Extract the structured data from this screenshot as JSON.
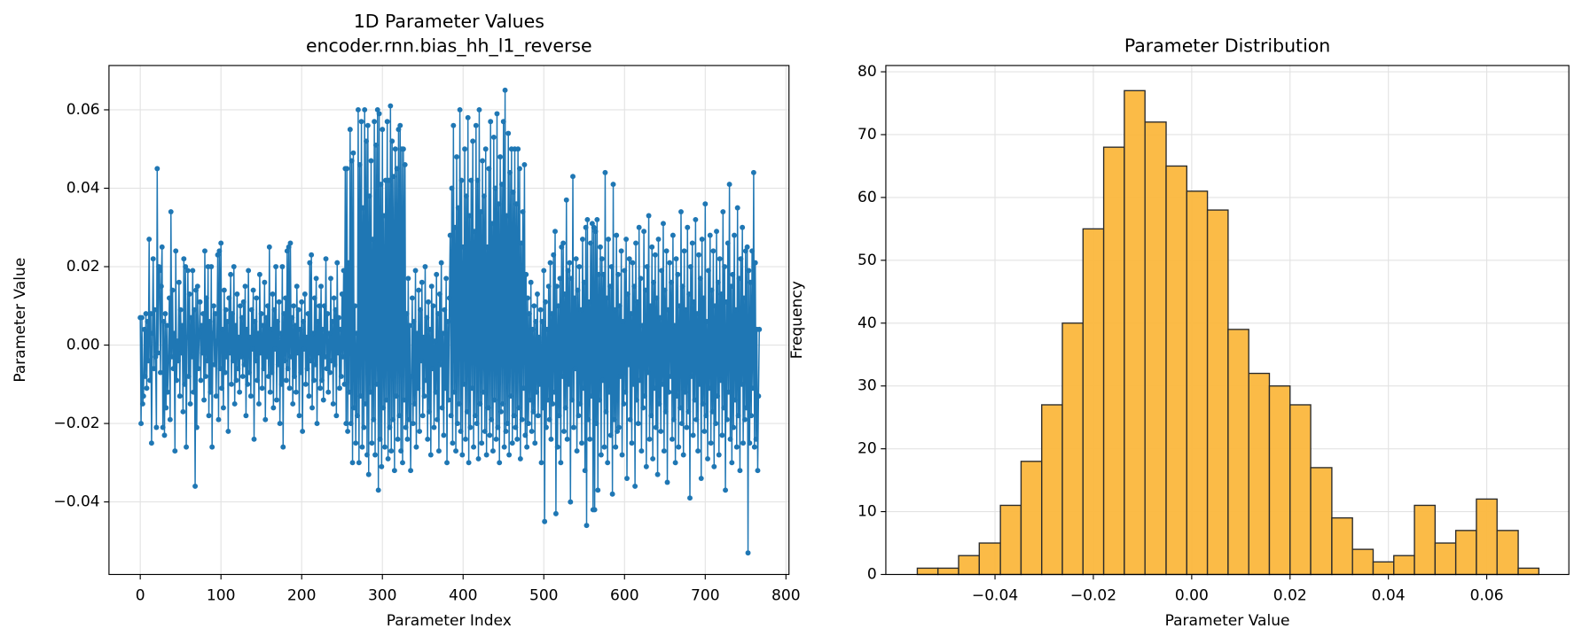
{
  "chart_data": [
    {
      "type": "line",
      "title": "1D Parameter Values",
      "subtitle": "encoder.rnn.bias_hh_l1_reverse",
      "xlabel": "Parameter Index",
      "ylabel": "Parameter Value",
      "color": "#1f77b4",
      "markers": true,
      "grid": true,
      "xlim": [
        -38.75,
        803.75
      ],
      "xticks": [
        0,
        100,
        200,
        300,
        400,
        500,
        600,
        700,
        800
      ],
      "ylim": [
        -0.0585,
        0.0713
      ],
      "yticks": [
        {
          "value": -0.04,
          "label": "−0.04"
        },
        {
          "value": -0.02,
          "label": "−0.02"
        },
        {
          "value": 0,
          "label": "0.00"
        },
        0.02,
        0.04,
        0.06
      ],
      "values": [
        0.007,
        -0.02,
        0.007,
        -0.015,
        -0.013,
        0.004,
        -0.008,
        0.008,
        -0.011,
        0.006,
        -0.004,
        0.027,
        -0.009,
        0.008,
        -0.025,
        0.003,
        0.022,
        -0.006,
        0.009,
        -0.003,
        -0.021,
        0.045,
        -0.002,
        0.02,
        0.019,
        -0.007,
        0.015,
        0.025,
        -0.021,
        0.006,
        -0.023,
        0.008,
        -0.016,
        0.005,
        -0.012,
        -0.004,
        0.012,
        -0.019,
        0.034,
        -0.003,
        0.014,
        -0.006,
        0.003,
        -0.027,
        0.024,
        -0.009,
        0.001,
        -0.004,
        0.016,
        -0.013,
        0.009,
        -0.002,
        0.005,
        -0.017,
        0.022,
        -0.01,
        0.02,
        -0.026,
        0.002,
        0.019,
        -0.008,
        0.013,
        -0.015,
        0.007,
        -0.003,
        0.019,
        -0.012,
        0.009,
        -0.036,
        0.014,
        -0.021,
        0.015,
        -0.006,
        0.003,
        0.011,
        -0.009,
        0.005,
        -0.002,
        0.008,
        -0.014,
        0.024,
        -0.008,
        0.012,
        -0.004,
        0.02,
        -0.018,
        0.006,
        -0.012,
        0.02,
        -0.026,
        0.003,
        0.01,
        -0.005,
        0.008,
        -0.013,
        0.001,
        0.023,
        -0.019,
        0.024,
        -0.006,
        0.026,
        -0.011,
        0.004,
        -0.016,
        0.014,
        -0.007,
        0.009,
        -0.003,
        0.006,
        -0.022,
        0.012,
        -0.002,
        0.018,
        -0.01,
        0.008,
        -0.004,
        0.02,
        -0.015,
        0.005,
        -0.009,
        0.013,
        -0.006,
        0.002,
        -0.012,
        0.01,
        -0.003,
        0.007,
        -0.008,
        0.011,
        -0.005,
        0.015,
        -0.018,
        0.004,
        -0.01,
        0.019,
        -0.007,
        0.002,
        -0.013,
        0.009,
        -0.001,
        0.014,
        -0.024,
        0.006,
        -0.004,
        0.012,
        -0.009,
        0.003,
        -0.015,
        0.018,
        -0.002,
        0.008,
        -0.011,
        0.005,
        -0.006,
        0.016,
        -0.019,
        0.007,
        -0.003,
        0.01,
        -0.008,
        0.025,
        -0.012,
        0.004,
        -0.007,
        0.013,
        -0.016,
        0.009,
        -0.001,
        0.02,
        -0.014,
        0.006,
        -0.005,
        0.011,
        -0.02,
        0.003,
        -0.01,
        0.02,
        -0.026,
        0.008,
        -0.004,
        0.012,
        -0.009,
        0.024,
        -0.006,
        0.025,
        -0.011,
        0.026,
        -0.003,
        0.007,
        -0.015,
        0.01,
        -0.008,
        0.005,
        -0.012,
        0.015,
        -0.002,
        0.009,
        -0.018,
        0.004,
        -0.007,
        0.011,
        -0.022,
        0.006,
        -0.001,
        0.013,
        -0.01,
        0.002,
        -0.006,
        0.008,
        -0.013,
        0.021,
        -0.004,
        0.023,
        -0.016,
        0.003,
        -0.009,
        0.012,
        -0.005,
        0.017,
        -0.02,
        0.006,
        -0.002,
        0.01,
        -0.011,
        0.015,
        -0.009,
        0.004,
        -0.014,
        0.01,
        -0.003,
        0.022,
        -0.006,
        0.008,
        -0.012,
        0.003,
        -0.007,
        0.017,
        -0.004,
        0.006,
        -0.015,
        0.012,
        -0.005,
        0.009,
        -0.018,
        0.021,
        -0.002,
        0.007,
        -0.011,
        0.004,
        -0.008,
        0.013,
        -0.003,
        0.019,
        -0.01,
        0.045,
        -0.02,
        0.045,
        -0.022,
        0.021,
        -0.012,
        0.055,
        -0.02,
        0.047,
        -0.03,
        0.049,
        -0.016,
        0.01,
        -0.025,
        0.003,
        -0.018,
        0.06,
        -0.03,
        0.046,
        -0.013,
        0.057,
        -0.026,
        0.035,
        -0.021,
        0.06,
        -0.015,
        0.052,
        -0.028,
        0.056,
        -0.033,
        0.038,
        -0.012,
        0.047,
        -0.025,
        0.027,
        -0.019,
        0.057,
        -0.028,
        0.051,
        -0.01,
        0.06,
        -0.037,
        0.059,
        -0.024,
        0.041,
        -0.031,
        0.055,
        -0.016,
        0.033,
        -0.026,
        0.042,
        -0.014,
        0.057,
        -0.029,
        0.042,
        -0.021,
        0.061,
        -0.027,
        0.052,
        -0.019,
        0.043,
        -0.032,
        0.05,
        -0.013,
        0.045,
        -0.024,
        0.055,
        -0.018,
        0.056,
        -0.027,
        0.05,
        -0.03,
        0.05,
        -0.014,
        0.046,
        -0.021,
        0.008,
        -0.024,
        0.017,
        -0.019,
        0.005,
        -0.032,
        -0.008,
        0.012,
        -0.02,
        0.006,
        -0.015,
        0.019,
        -0.026,
        0.003,
        -0.011,
        0.014,
        -0.022,
        0.009,
        -0.004,
        0.016,
        -0.018,
        0.002,
        -0.013,
        0.02,
        -0.009,
        0.007,
        -0.024,
        0.011,
        -0.017,
        0.004,
        -0.028,
        0.015,
        -0.006,
        0.01,
        -0.021,
        0.001,
        -0.012,
        0.018,
        -0.019,
        0.008,
        -0.027,
        0.013,
        -0.005,
        0.021,
        -0.016,
        0.003,
        -0.023,
        0.009,
        -0.011,
        0.017,
        -0.03,
        0.006,
        -0.014,
        0.012,
        0.028,
        -0.018,
        0.04,
        -0.025,
        0.056,
        -0.012,
        0.03,
        -0.027,
        0.048,
        -0.02,
        0.035,
        -0.015,
        0.06,
        -0.022,
        0.042,
        -0.028,
        0.025,
        -0.01,
        0.05,
        -0.024,
        0.038,
        -0.017,
        0.058,
        -0.03,
        0.033,
        -0.021,
        0.042,
        -0.011,
        0.052,
        -0.026,
        0.029,
        -0.018,
        0.056,
        -0.02,
        0.042,
        -0.029,
        0.06,
        -0.015,
        0.034,
        -0.025,
        0.047,
        -0.012,
        0.038,
        -0.022,
        0.05,
        -0.028,
        0.025,
        -0.016,
        0.045,
        -0.023,
        0.057,
        -0.019,
        0.031,
        -0.027,
        0.053,
        -0.014,
        0.04,
        -0.024,
        0.059,
        -0.021,
        0.036,
        -0.03,
        0.048,
        -0.017,
        0.041,
        -0.015,
        0.057,
        -0.026,
        0.065,
        -0.022,
        0.033,
        -0.02,
        0.054,
        -0.028,
        0.044,
        -0.013,
        0.05,
        -0.025,
        0.039,
        -0.018,
        0.05,
        -0.021,
        0.036,
        -0.024,
        0.05,
        -0.016,
        0.045,
        -0.029,
        0.026,
        -0.019,
        0.034,
        -0.011,
        0.046,
        -0.023,
        0.018,
        -0.026,
        0.012,
        -0.02,
        0.008,
        -0.014,
        0.016,
        -0.022,
        0.004,
        -0.017,
        0.01,
        -0.025,
        0.006,
        -0.012,
        0.013,
        -0.018,
        0.002,
        -0.01,
        0.009,
        -0.03,
        0.006,
        -0.016,
        0.019,
        -0.045,
        0.011,
        -0.021,
        0.004,
        -0.014,
        0.015,
        -0.019,
        0.021,
        -0.024,
        0.008,
        -0.015,
        0.023,
        -0.012,
        0.029,
        -0.043,
        0.015,
        -0.026,
        0.01,
        -0.018,
        0.017,
        -0.03,
        0.025,
        -0.008,
        0.026,
        -0.022,
        0.013,
        -0.016,
        0.037,
        -0.024,
        0.019,
        -0.01,
        0.021,
        -0.04,
        0.017,
        -0.014,
        0.043,
        -0.021,
        0.012,
        -0.006,
        0.022,
        -0.027,
        0.014,
        -0.018,
        0.02,
        -0.015,
        0.009,
        -0.025,
        0.027,
        -0.011,
        0.016,
        -0.032,
        0.03,
        -0.046,
        0.032,
        -0.019,
        0.011,
        -0.024,
        0.026,
        -0.013,
        0.031,
        -0.042,
        0.03,
        -0.042,
        0.029,
        -0.02,
        0.032,
        -0.037,
        0.018,
        -0.014,
        0.025,
        -0.028,
        0.022,
        -0.009,
        0.018,
        -0.026,
        0.044,
        -0.017,
        0.012,
        -0.03,
        0.027,
        -0.012,
        0.015,
        -0.023,
        0.02,
        -0.038,
        0.041,
        -0.019,
        0.009,
        -0.026,
        0.028,
        -0.022,
        0.018,
        -0.021,
        0.01,
        -0.008,
        0.024,
        -0.028,
        0.006,
        -0.015,
        0.019,
        -0.012,
        0.027,
        -0.034,
        0.013,
        -0.005,
        0.022,
        -0.019,
        0.008,
        -0.025,
        0.021,
        -0.01,
        0.015,
        -0.036,
        0.026,
        -0.014,
        0.011,
        -0.02,
        0.03,
        -0.009,
        0.017,
        -0.027,
        0.005,
        -0.016,
        0.029,
        -0.013,
        0.014,
        -0.031,
        0.02,
        -0.007,
        0.033,
        -0.024,
        0.01,
        -0.018,
        0.025,
        -0.029,
        0.016,
        -0.011,
        0.023,
        -0.021,
        0.012,
        -0.033,
        0.027,
        -0.015,
        0.007,
        -0.022,
        0.019,
        -0.01,
        0.031,
        -0.027,
        0.014,
        -0.017,
        0.024,
        -0.035,
        0.009,
        -0.012,
        0.021,
        -0.008,
        0.016,
        -0.024,
        0.028,
        -0.019,
        0.005,
        -0.03,
        0.022,
        -0.013,
        0.018,
        -0.026,
        0.01,
        -0.016,
        0.034,
        -0.02,
        0.015,
        -0.028,
        0.024,
        -0.012,
        0.009,
        -0.021,
        0.03,
        -0.017,
        0.013,
        -0.039,
        0.02,
        -0.008,
        0.026,
        -0.023,
        0.011,
        -0.014,
        0.032,
        -0.019,
        0.008,
        -0.027,
        0.023,
        -0.01,
        0.017,
        -0.034,
        0.027,
        -0.015,
        0.012,
        -0.022,
        0.036,
        -0.018,
        0.006,
        -0.029,
        0.019,
        -0.011,
        0.028,
        -0.025,
        0.014,
        -0.017,
        0.024,
        -0.031,
        0.01,
        -0.02,
        0.029,
        -0.013,
        0.016,
        -0.028,
        0.022,
        -0.009,
        0.013,
        -0.023,
        0.034,
        -0.016,
        0.02,
        -0.037,
        0.011,
        -0.019,
        0.026,
        -0.012,
        0.041,
        -0.024,
        0.015,
        -0.03,
        0.018,
        -0.021,
        0.028,
        -0.014,
        0.009,
        -0.026,
        0.035,
        -0.018,
        0.017,
        -0.032,
        0.022,
        -0.01,
        0.03,
        -0.025,
        0.012,
        -0.019,
        0.024,
        -0.016,
        0.025,
        -0.053,
        0.019,
        -0.025,
        0.016,
        -0.018,
        0.024,
        -0.011,
        0.044,
        -0.026,
        0.021,
        -0.024,
        0.004,
        -0.032,
        -0.013,
        0.004
      ]
    },
    {
      "type": "histogram",
      "title": "Parameter Distribution",
      "xlabel": "Parameter Value",
      "ylabel": "Frequency",
      "color": "#fbb73d",
      "edgecolor": "#2b2b2b",
      "grid": true,
      "xlim": [
        -0.0622,
        0.0767
      ],
      "xticks": [
        {
          "value": -0.04,
          "label": "−0.04"
        },
        {
          "value": -0.02,
          "label": "−0.02"
        },
        {
          "value": 0,
          "label": "0.00"
        },
        0.02,
        0.04,
        0.06
      ],
      "ylim": [
        0,
        81
      ],
      "yticks": [
        0,
        10,
        20,
        30,
        40,
        50,
        60,
        70,
        80
      ],
      "bins": [
        -0.0558,
        -0.0516,
        -0.0474,
        -0.0432,
        -0.0389,
        -0.0347,
        -0.0305,
        -0.0263,
        -0.0221,
        -0.0179,
        -0.0137,
        -0.0095,
        -0.0052,
        -0.001,
        0.0032,
        0.0074,
        0.0116,
        0.0158,
        0.02,
        0.0242,
        0.0285,
        0.0327,
        0.0369,
        0.0411,
        0.0453,
        0.0495,
        0.0537,
        0.0579,
        0.0621,
        0.0664,
        0.0706
      ],
      "values": [
        1,
        1,
        3,
        5,
        11,
        18,
        27,
        40,
        55,
        68,
        77,
        72,
        65,
        61,
        58,
        39,
        32,
        30,
        27,
        17,
        9,
        4,
        2,
        3,
        11,
        5,
        7,
        12,
        7,
        1
      ]
    }
  ]
}
